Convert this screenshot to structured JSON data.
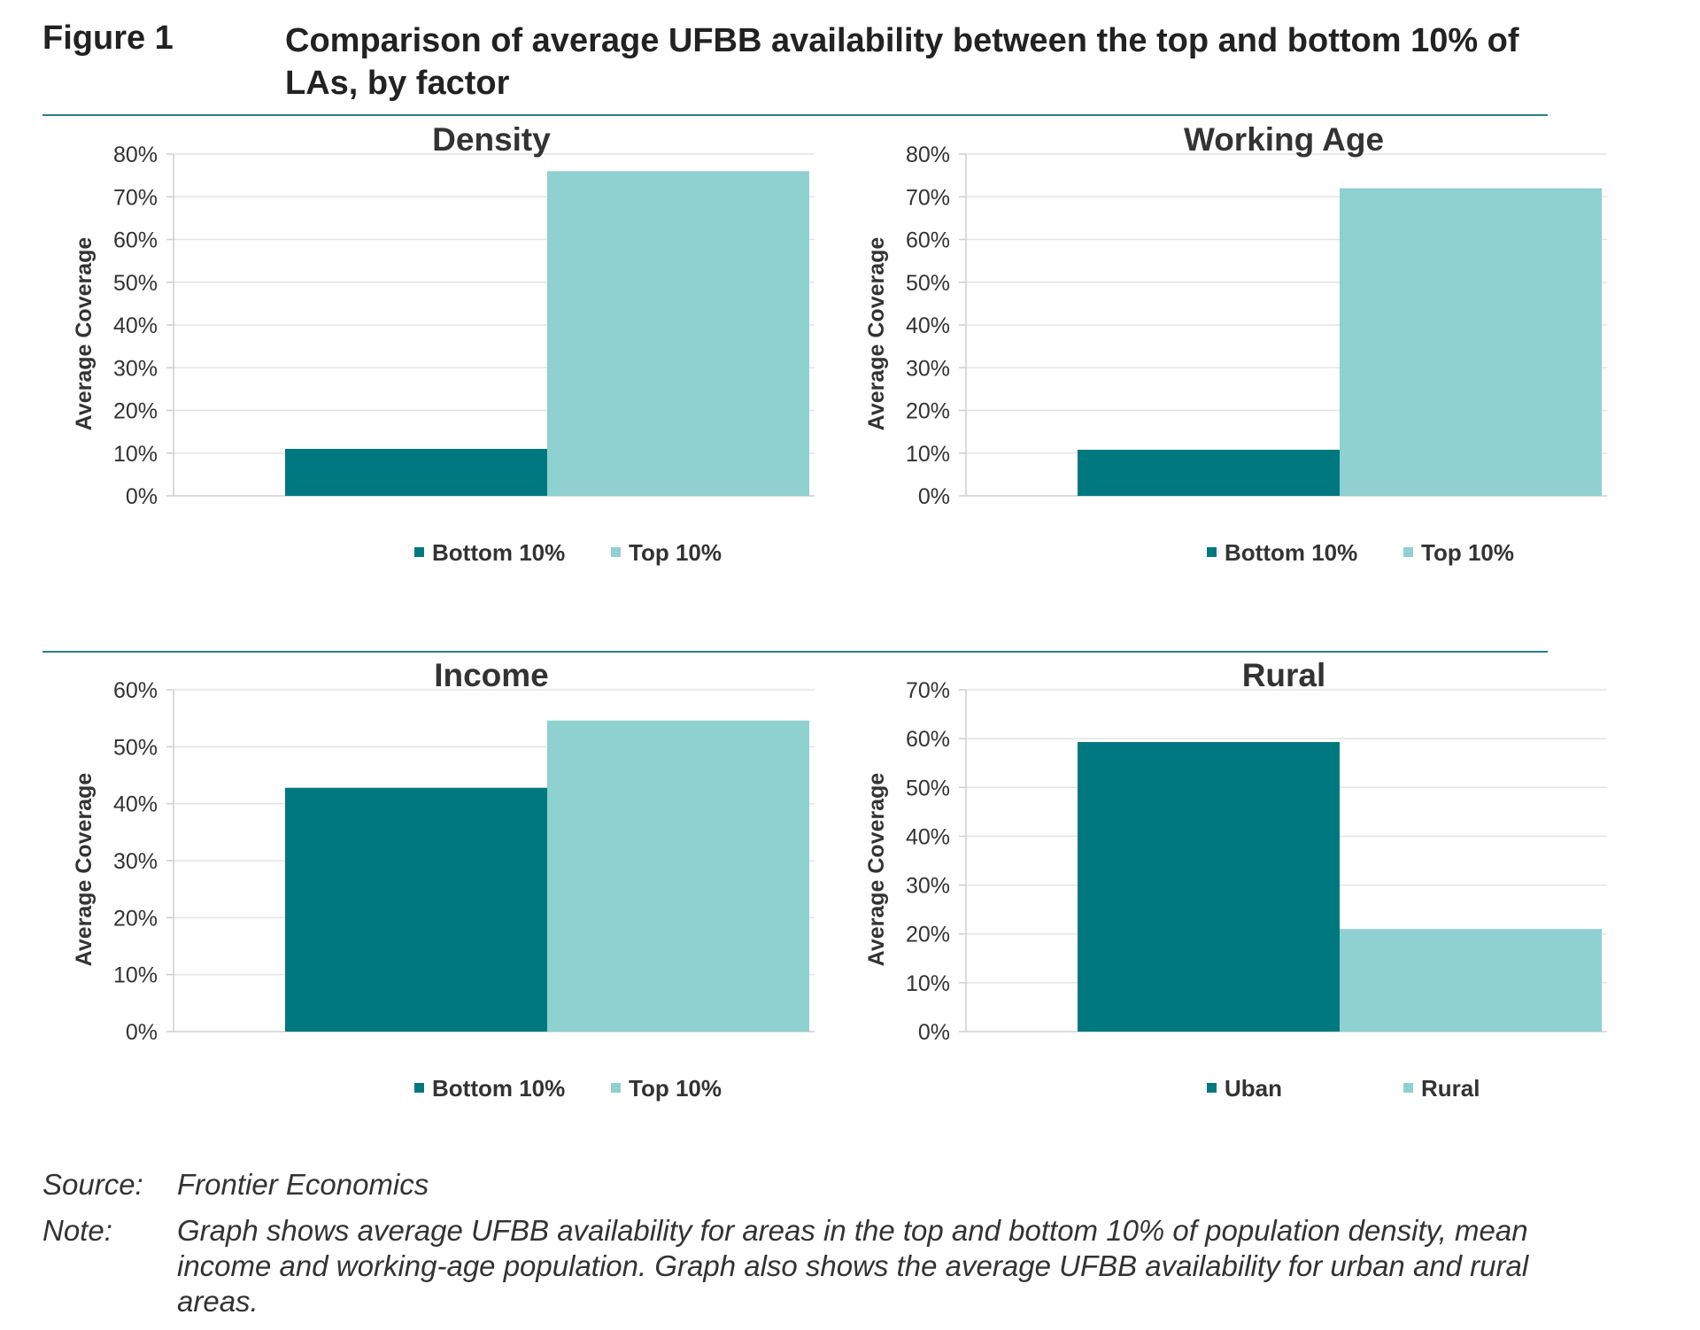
{
  "figure": {
    "label": "Figure 1",
    "title": "Comparison of average UFBB availability between the top and bottom 10% of LAs, by factor"
  },
  "colors": {
    "dark": "#007880",
    "light": "#8fd0d0",
    "grid": "#e4e4e4",
    "axis": "#cfcfcf"
  },
  "chart_data": [
    {
      "type": "bar",
      "title": "Density",
      "ylabel": "Average Coverage",
      "ylim": [
        0,
        80
      ],
      "yticks": [
        "0%",
        "10%",
        "20%",
        "30%",
        "40%",
        "50%",
        "60%",
        "70%",
        "80%"
      ],
      "series": [
        {
          "name": "Bottom 10%",
          "value": 11
        },
        {
          "name": "Top 10%",
          "value": 76
        }
      ],
      "grid": true,
      "legend": "bottom"
    },
    {
      "type": "bar",
      "title": "Working Age",
      "ylabel": "Average Coverage",
      "ylim": [
        0,
        80
      ],
      "yticks": [
        "0%",
        "10%",
        "20%",
        "30%",
        "40%",
        "50%",
        "60%",
        "70%",
        "80%"
      ],
      "series": [
        {
          "name": "Bottom 10%",
          "value": 10.8
        },
        {
          "name": "Top 10%",
          "value": 72
        }
      ],
      "grid": true,
      "legend": "bottom"
    },
    {
      "type": "bar",
      "title": "Income",
      "ylabel": "Average Coverage",
      "ylim": [
        0,
        60
      ],
      "yticks": [
        "0%",
        "10%",
        "20%",
        "30%",
        "40%",
        "50%",
        "60%"
      ],
      "series": [
        {
          "name": "Bottom 10%",
          "value": 42.8
        },
        {
          "name": "Top 10%",
          "value": 54.6
        }
      ],
      "grid": true,
      "legend": "bottom"
    },
    {
      "type": "bar",
      "title": "Rural",
      "ylabel": "Average Coverage",
      "ylim": [
        0,
        70
      ],
      "yticks": [
        "0%",
        "10%",
        "20%",
        "30%",
        "40%",
        "50%",
        "60%",
        "70%"
      ],
      "series": [
        {
          "name": "Uban",
          "value": 59.3
        },
        {
          "name": "Rural",
          "value": 21
        }
      ],
      "grid": true,
      "legend": "bottom"
    }
  ],
  "notes": {
    "source_label": "Source:",
    "source_text": "Frontier Economics",
    "note_label": "Note:",
    "note_text": "Graph shows average UFBB availability for areas in the top and bottom 10% of population density, mean income and working-age population. Graph also shows the average UFBB availability for urban and rural areas."
  }
}
